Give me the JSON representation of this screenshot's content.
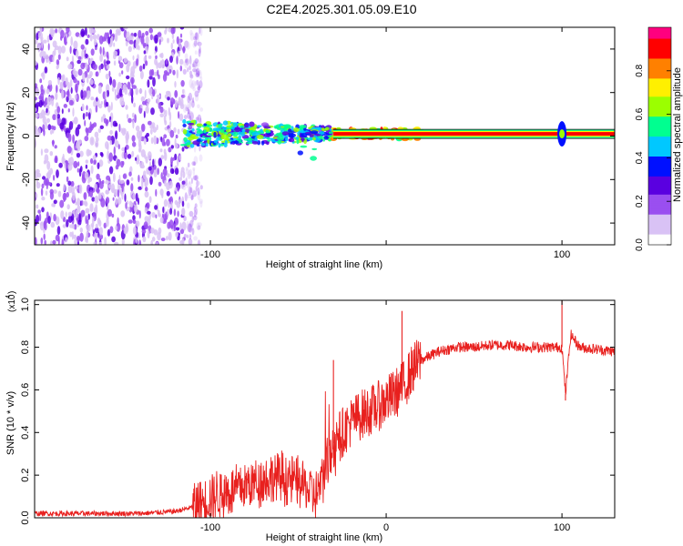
{
  "title": "C2E4.2025.301.05.09.E10",
  "chart_data": [
    {
      "type": "heatmap",
      "name": "spectrogram",
      "xlabel": "Height of straight line (km)",
      "ylabel": "Frequency (Hz)",
      "xlim": [
        -200,
        130
      ],
      "ylim": [
        -50,
        50
      ],
      "xticks": [
        -100,
        0,
        100
      ],
      "xtick_labels": [
        "-100",
        "",
        "100"
      ],
      "yticks": [
        -40,
        -20,
        0,
        20,
        40
      ],
      "ytick_labels": [
        "-40",
        "-20",
        "0",
        "20",
        "40"
      ],
      "colorbar": {
        "label": "Normalized spectral amplitude",
        "range": [
          0.0,
          1.0
        ],
        "ticks": [
          0.0,
          0.2,
          0.4,
          0.6,
          0.8
        ],
        "tick_labels": [
          "0.0",
          "0.2",
          "0.4",
          "0.6",
          "0.8"
        ],
        "colors": [
          "#ffffff",
          "#d9c2f5",
          "#9a4ff0",
          "#5a00e0",
          "#0010ff",
          "#00c8ff",
          "#00ff90",
          "#9bff00",
          "#fff000",
          "#ff8000",
          "#ff0000",
          "#ff007f"
        ]
      },
      "regions": [
        {
          "label": "noise",
          "x_range": [
            -200,
            -105
          ],
          "freq_range": [
            -50,
            50
          ],
          "amplitude": 0.15
        },
        {
          "label": "signal onset",
          "x_range": [
            -115,
            -30
          ],
          "freq_range": [
            -12,
            8
          ],
          "amplitude": 0.45
        },
        {
          "label": "carrier",
          "x_range": [
            -30,
            130
          ],
          "freq": 1,
          "amplitude": 0.95
        },
        {
          "label": "burst",
          "x": 100,
          "freq_range": [
            -4,
            4
          ],
          "amplitude": 0.6
        }
      ]
    },
    {
      "type": "line",
      "name": "snr",
      "xlabel": "Height of straight line (km)",
      "ylabel": "SNR (10 * v/v)",
      "y_scale_label": "(x10",
      "y_scale_exponent": "4",
      "xlim": [
        -200,
        130
      ],
      "ylim": [
        0,
        1.02
      ],
      "xticks": [
        -100,
        0,
        100
      ],
      "xtick_labels": [
        "-100",
        "0",
        "100"
      ],
      "yticks": [
        0.0,
        0.2,
        0.4,
        0.6,
        0.8,
        1.0
      ],
      "ytick_labels": [
        "0.0",
        "0.2",
        "0.4",
        "0.6",
        "0.8",
        "1.0"
      ],
      "color": "#e8201e",
      "x": [
        -200,
        -180,
        -160,
        -140,
        -120,
        -110,
        -100,
        -90,
        -80,
        -70,
        -60,
        -50,
        -40,
        -35,
        -30,
        -25,
        -20,
        -15,
        -10,
        -5,
        0,
        5,
        10,
        15,
        20,
        25,
        30,
        35,
        40,
        50,
        60,
        70,
        80,
        90,
        95,
        100,
        102,
        105,
        110,
        120,
        130
      ],
      "y": [
        0.02,
        0.02,
        0.02,
        0.02,
        0.03,
        0.05,
        0.1,
        0.12,
        0.15,
        0.18,
        0.19,
        0.17,
        0.1,
        0.2,
        0.35,
        0.4,
        0.45,
        0.48,
        0.5,
        0.52,
        0.55,
        0.58,
        0.62,
        0.7,
        0.74,
        0.76,
        0.78,
        0.79,
        0.8,
        0.8,
        0.81,
        0.81,
        0.8,
        0.8,
        0.8,
        0.8,
        0.58,
        0.86,
        0.8,
        0.79,
        0.78
      ],
      "annotations": [
        {
          "x": -30,
          "y": 0.74
        },
        {
          "x": 9,
          "y": 0.97
        },
        {
          "x": 100,
          "y": 1.02
        },
        {
          "x": 102,
          "y": 0.55
        }
      ]
    }
  ]
}
